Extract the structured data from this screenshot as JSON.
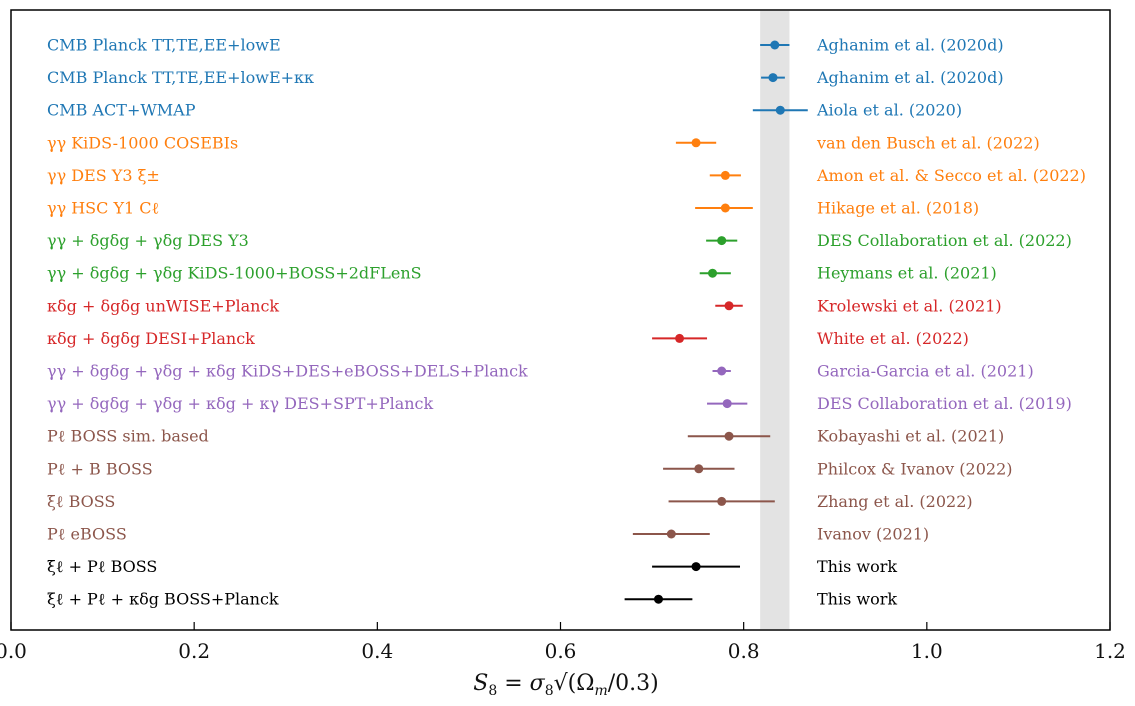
{
  "chart_data": {
    "type": "scatter",
    "xlabel": "S₈ = σ₈√(Ωm/0.3)",
    "xlim": [
      0.0,
      1.2
    ],
    "xticks": [
      "0.0",
      "0.2",
      "0.4",
      "0.6",
      "0.8",
      "1.0",
      "1.2"
    ],
    "band": [
      0.818,
      0.85
    ],
    "colors": {
      "cmb": "#1f77b4",
      "lensing": "#ff7f0e",
      "3x2pt": "#2ca02c",
      "cross": "#d62728",
      "multi": "#9467bd",
      "boss": "#8c564b",
      "this_work": "#000000",
      "band": "#e3e3e3"
    },
    "rows": [
      {
        "label": "CMB Planck TT,TE,EE+lowE",
        "ref": "Aghanim et al. (2020d)",
        "value": 0.834,
        "err_low": 0.016,
        "err_high": 0.016,
        "group": "cmb"
      },
      {
        "label": "CMB Planck TT,TE,EE+lowE+κκ",
        "ref": "Aghanim et al. (2020d)",
        "value": 0.832,
        "err_low": 0.013,
        "err_high": 0.013,
        "group": "cmb"
      },
      {
        "label": "CMB ACT+WMAP",
        "ref": "Aiola et al. (2020)",
        "value": 0.84,
        "err_low": 0.03,
        "err_high": 0.03,
        "group": "cmb"
      },
      {
        "label": "γγ KiDS-1000 COSEBIs",
        "ref": "van den Busch et al. (2022)",
        "value": 0.748,
        "err_low": 0.022,
        "err_high": 0.022,
        "group": "lensing"
      },
      {
        "label": "γγ DES Y3 ξ±",
        "ref": "Amon et al. & Secco et al. (2022)",
        "value": 0.78,
        "err_low": 0.017,
        "err_high": 0.017,
        "group": "lensing"
      },
      {
        "label": "γγ HSC Y1 Cℓ",
        "ref": "Hikage et al. (2018)",
        "value": 0.78,
        "err_low": 0.033,
        "err_high": 0.03,
        "group": "lensing"
      },
      {
        "label": "γγ + δgδg + γδg DES Y3",
        "ref": "DES Collaboration et al. (2022)",
        "value": 0.776,
        "err_low": 0.017,
        "err_high": 0.017,
        "group": "3x2pt"
      },
      {
        "label": "γγ + δgδg + γδg KiDS-1000+BOSS+2dFLenS",
        "ref": "Heymans et al. (2021)",
        "value": 0.766,
        "err_low": 0.014,
        "err_high": 0.02,
        "group": "3x2pt"
      },
      {
        "label": "κδg + δgδg unWISE+Planck",
        "ref": "Krolewski et al. (2021)",
        "value": 0.784,
        "err_low": 0.015,
        "err_high": 0.015,
        "group": "cross"
      },
      {
        "label": "κδg + δgδg DESI+Planck",
        "ref": "White et al. (2022)",
        "value": 0.73,
        "err_low": 0.03,
        "err_high": 0.03,
        "group": "cross"
      },
      {
        "label": "γγ + δgδg + γδg + κδg KiDS+DES+eBOSS+DELS+Planck",
        "ref": "Garcia-Garcia et al. (2021)",
        "value": 0.776,
        "err_low": 0.01,
        "err_high": 0.01,
        "group": "multi"
      },
      {
        "label": "γγ + δgδg + γδg + κδg + κγ DES+SPT+Planck",
        "ref": "DES Collaboration et al. (2019)",
        "value": 0.782,
        "err_low": 0.022,
        "err_high": 0.022,
        "group": "multi"
      },
      {
        "label": "Pℓ BOSS sim. based",
        "ref": "Kobayashi et al. (2021)",
        "value": 0.784,
        "err_low": 0.045,
        "err_high": 0.045,
        "group": "boss"
      },
      {
        "label": "Pℓ + B BOSS",
        "ref": "Philcox & Ivanov (2022)",
        "value": 0.751,
        "err_low": 0.039,
        "err_high": 0.039,
        "group": "boss"
      },
      {
        "label": "ξℓ BOSS",
        "ref": "Zhang et al. (2022)",
        "value": 0.776,
        "err_low": 0.058,
        "err_high": 0.058,
        "group": "boss"
      },
      {
        "label": "Pℓ eBOSS",
        "ref": "Ivanov (2021)",
        "value": 0.721,
        "err_low": 0.042,
        "err_high": 0.042,
        "group": "boss"
      },
      {
        "label": "ξℓ + Pℓ BOSS",
        "ref": "This work",
        "value": 0.748,
        "err_low": 0.048,
        "err_high": 0.048,
        "group": "this_work"
      },
      {
        "label": "ξℓ + Pℓ + κδg BOSS+Planck",
        "ref": "This work",
        "value": 0.707,
        "err_low": 0.037,
        "err_high": 0.037,
        "group": "this_work"
      }
    ]
  }
}
